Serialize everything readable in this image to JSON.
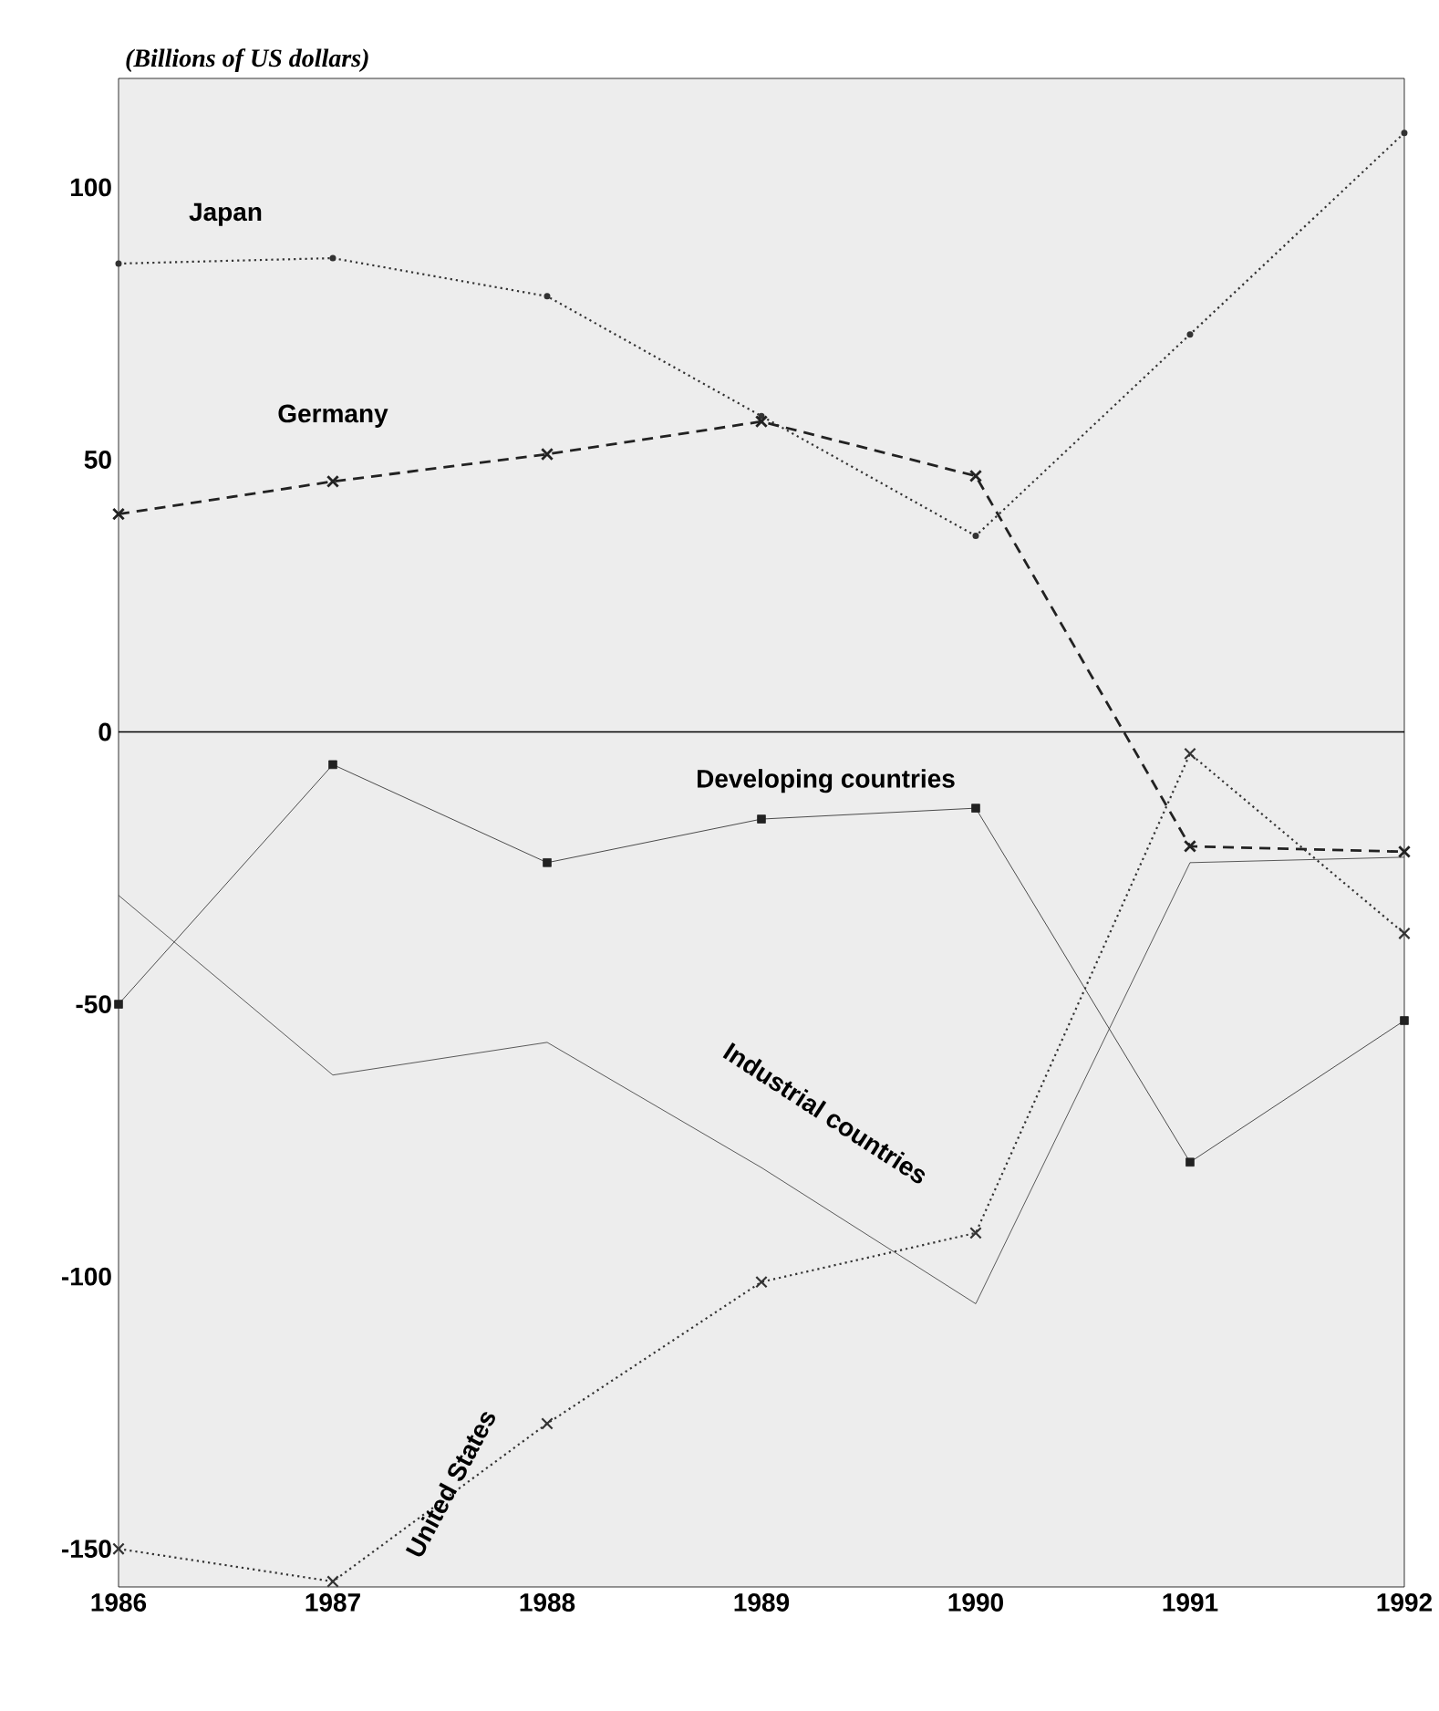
{
  "chart_data": {
    "type": "line",
    "ylabel": "(Billions of US dollars)",
    "x": [
      1986,
      1987,
      1988,
      1989,
      1990,
      1991,
      1992
    ],
    "series": [
      {
        "name": "Japan",
        "color": "#333333",
        "values": [
          86,
          87,
          80,
          58,
          36,
          73,
          110
        ],
        "marker": "circle",
        "line_style": "dotted"
      },
      {
        "name": "Germany",
        "color": "#222222",
        "values": [
          40,
          46,
          51,
          57,
          47,
          -21,
          -22
        ],
        "marker": "cross",
        "line_style": "dashed"
      },
      {
        "name": "Developing countries",
        "color": "#222222",
        "values": [
          -50,
          -6,
          -24,
          -16,
          -14,
          -79,
          -53
        ],
        "marker": "square",
        "line_style": "solid"
      },
      {
        "name": "Industrial countries",
        "color": "#333333",
        "values": [
          -30,
          -63,
          -57,
          -80,
          -105,
          -24,
          -23
        ],
        "marker": "none",
        "line_style": "solid"
      },
      {
        "name": "United States",
        "color": "#333333",
        "values": [
          -150,
          -156,
          -127,
          -101,
          -92,
          -4,
          -37
        ],
        "marker": "cross",
        "line_style": "dotted"
      }
    ],
    "xlim": [
      1986,
      1992
    ],
    "ylim": [
      -157,
      120
    ],
    "xticks": [
      1986,
      1987,
      1988,
      1989,
      1990,
      1991,
      1992
    ],
    "yticks": [
      -150,
      -100,
      -50,
      0,
      50,
      100
    ],
    "ref_lines": [
      {
        "axis": "y",
        "value": 0
      }
    ],
    "grid": false
  }
}
